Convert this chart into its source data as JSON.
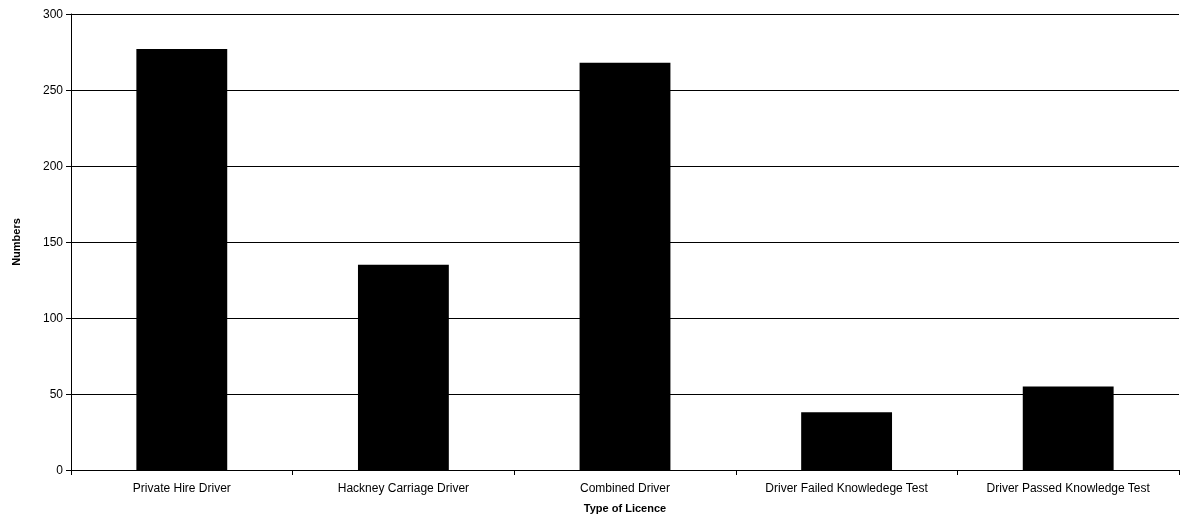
{
  "chart_data": {
    "type": "bar",
    "xlabel": "Type of Licence",
    "ylabel": "Numbers",
    "categories": [
      "Private Hire Driver",
      "Hackney Carriage Driver",
      "Combined Driver",
      "Driver Failed Knowledege Test",
      "Driver Passed Knowledge Test"
    ],
    "values": [
      277,
      135,
      268,
      38,
      55
    ],
    "color": "#000000",
    "ylim": [
      0,
      300
    ],
    "yticks": [
      0,
      50,
      100,
      150,
      200,
      250,
      300
    ],
    "grid": "y"
  }
}
